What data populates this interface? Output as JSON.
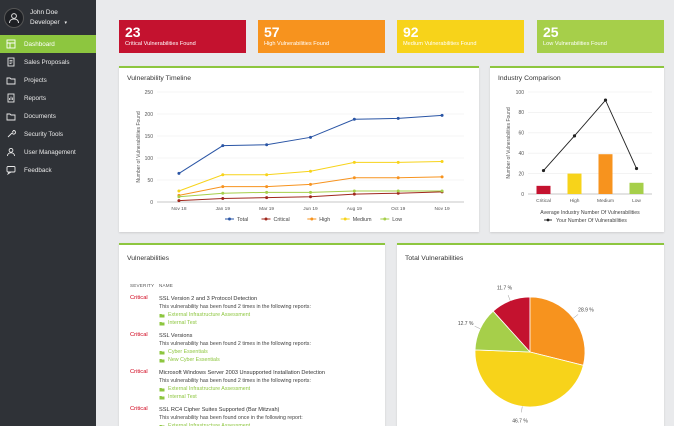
{
  "profile": {
    "name": "John Doe",
    "role": "Developer"
  },
  "nav": [
    {
      "label": "Dashboard",
      "icon": "dashboard-icon",
      "active": true
    },
    {
      "label": "Sales Proposals",
      "icon": "document-icon"
    },
    {
      "label": "Projects",
      "icon": "folder-icon"
    },
    {
      "label": "Reports",
      "icon": "report-icon"
    },
    {
      "label": "Documents",
      "icon": "folder-icon"
    },
    {
      "label": "Security Tools",
      "icon": "wrench-icon"
    },
    {
      "label": "User Management",
      "icon": "user-icon"
    },
    {
      "label": "Feedback",
      "icon": "chat-icon"
    }
  ],
  "stats": [
    {
      "value": "23",
      "label": "Critical Vulnerabilities Found",
      "color": "#c4122f"
    },
    {
      "value": "57",
      "label": "High Vulnerabilities Found",
      "color": "#f7931e"
    },
    {
      "value": "92",
      "label": "Medium Vulnerabilities Found",
      "color": "#f7d31a"
    },
    {
      "value": "25",
      "label": "Low Vulnerabilities Found",
      "color": "#a6cf4a"
    }
  ],
  "panels": {
    "timeline": "Vulnerability Timeline",
    "industry": "Industry Comparison",
    "vulns": "Vulnerabilities",
    "total": "Total Vulnerabilities"
  },
  "vuln_table": {
    "col_severity": "SEVERITY",
    "col_name": "NAME",
    "rows": [
      {
        "severity": "Critical",
        "name": "SSL Version 2 and 3 Protocol Detection",
        "desc": "This vulnerability has been found 2 times in the following reports:",
        "links": [
          "External Infrastructure Assessment",
          "Internal Test"
        ]
      },
      {
        "severity": "Critical",
        "name": "SSL Versions",
        "desc": "This vulnerability has been found 2 times in the following reports:",
        "links": [
          "Cyber Essentials",
          "New Cyber Essentials"
        ]
      },
      {
        "severity": "Critical",
        "name": "Microsoft Windows Server 2003 Unsupported Installation Detection",
        "desc": "This vulnerability has been found 2 times in the following reports:",
        "links": [
          "External Infrastructure Assessment",
          "Internal Test"
        ]
      },
      {
        "severity": "Critical",
        "name": "SSL RC4 Cipher Suites Supported (Bar Mitzvah)",
        "desc": "This vulnerability has been found once in the following report:",
        "links": [
          "External Infrastructure Assessment"
        ]
      }
    ]
  },
  "chart_data": [
    {
      "type": "line",
      "title": "Vulnerability Timeline",
      "ylabel": "Number of Vulnerabilities Found",
      "categories": [
        "Nov 18",
        "Jan 19",
        "Mar 19",
        "Jun 19",
        "Aug 19",
        "Oct 19",
        "Nov 19"
      ],
      "yticks": [
        "0",
        "50",
        "100",
        "150",
        "200",
        "250"
      ],
      "ylim": [
        0,
        250
      ],
      "series": [
        {
          "name": "Total",
          "color": "#2a55a5",
          "values": [
            65,
            128,
            130,
            147,
            188,
            190,
            197
          ]
        },
        {
          "name": "Critical",
          "color": "#a0281e",
          "values": [
            3,
            8,
            10,
            12,
            18,
            20,
            23
          ]
        },
        {
          "name": "High",
          "color": "#f7931e",
          "values": [
            15,
            35,
            35,
            40,
            55,
            55,
            57
          ]
        },
        {
          "name": "Medium",
          "color": "#f7d31a",
          "values": [
            25,
            62,
            62,
            70,
            90,
            90,
            92
          ]
        },
        {
          "name": "Low",
          "color": "#a6cf4a",
          "values": [
            12,
            20,
            22,
            22,
            25,
            25,
            25
          ]
        }
      ]
    },
    {
      "type": "bar",
      "title": "Industry Comparison",
      "ylabel": "Number of Vulnerabilities Found",
      "categories": [
        "Critical",
        "High",
        "Medium",
        "Low"
      ],
      "yticks": [
        "0",
        "20",
        "40",
        "60",
        "80",
        "100"
      ],
      "ylim": [
        0,
        100
      ],
      "bar_series": {
        "name": "Average Industry Number Of Vulnerabilities",
        "values": [
          8,
          20,
          39,
          11
        ],
        "colors": [
          "#c4122f",
          "#f7d31a",
          "#f7931e",
          "#a6cf4a"
        ]
      },
      "line_series": {
        "name": "Your Number Of Vulnerabilities",
        "values": [
          23,
          57,
          92,
          25
        ]
      }
    },
    {
      "type": "pie",
      "title": "Total Vulnerabilities",
      "slices": [
        {
          "label": "Critical",
          "value": 11.7,
          "text": "11.7 %",
          "color": "#c4122f"
        },
        {
          "label": "High",
          "value": 28.9,
          "text": "28.9 %",
          "color": "#f7931e"
        },
        {
          "label": "Medium",
          "value": 46.7,
          "text": "46.7 %",
          "color": "#f7d31a"
        },
        {
          "label": "Low",
          "value": 12.7,
          "text": "12.7 %",
          "color": "#a6cf4a"
        }
      ]
    }
  ]
}
